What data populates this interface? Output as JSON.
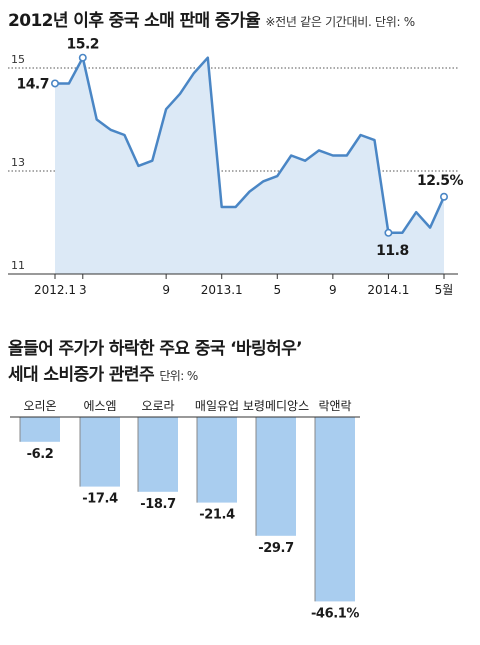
{
  "line_chart": {
    "title": "2012년 이후 중국 소매 판매 증가율",
    "note": "※전년 같은 기간대비. 단위: %"
  },
  "bar_chart": {
    "title_line1": "올들어 주가가 하락한 주요 중국 ‘바링허우’",
    "title_line2": "세대 소비증가 관련주",
    "note": "단위: %"
  },
  "colors": {
    "line": "#4a86c5",
    "area": "#dce9f6",
    "bar": "#a9cdef",
    "text": "#1a1a1a"
  },
  "chart_data": [
    {
      "type": "line",
      "title": "2012년 이후 중국 소매 판매 증가율",
      "unit_note": "※전년 같은 기간대비. 단위: %",
      "y_ticks": [
        "15",
        "13",
        "11"
      ],
      "ylim": [
        11,
        15.6
      ],
      "x_tick_labels": [
        {
          "index": 0,
          "label": "2012.1"
        },
        {
          "index": 2,
          "label": "3"
        },
        {
          "index": 8,
          "label": "9"
        },
        {
          "index": 12,
          "label": "2013.1"
        },
        {
          "index": 16,
          "label": "5"
        },
        {
          "index": 20,
          "label": "9"
        },
        {
          "index": 24,
          "label": "2014.1"
        },
        {
          "index": 28,
          "label": "5월"
        }
      ],
      "values": [
        14.7,
        14.7,
        15.2,
        14.0,
        13.8,
        13.7,
        13.1,
        13.2,
        14.2,
        14.5,
        14.9,
        15.2,
        12.3,
        12.3,
        12.6,
        12.8,
        12.9,
        13.3,
        13.2,
        13.4,
        13.3,
        13.3,
        13.7,
        13.6,
        11.8,
        11.8,
        12.2,
        11.9,
        12.5
      ],
      "annotations": [
        {
          "index": 0,
          "label": "14.7"
        },
        {
          "index": 2,
          "label": "15.2"
        },
        {
          "index": 24,
          "label": "11.8"
        },
        {
          "index": 28,
          "label": "12.5%"
        }
      ],
      "grid": true
    },
    {
      "type": "bar",
      "title": "올들어 주가가 하락한 주요 중국 ‘바링허우’ 세대 소비증가 관련주",
      "unit_note": "단위: %",
      "categories": [
        "오리온",
        "에스엠",
        "오로라",
        "매일유업",
        "보령메디앙스",
        "락앤락"
      ],
      "values": [
        -6.2,
        -17.4,
        -18.7,
        -21.4,
        -29.7,
        -46.1
      ],
      "value_labels": [
        "-6.2",
        "-17.4",
        "-18.7",
        "-21.4",
        "-29.7",
        "-46.1%"
      ]
    }
  ]
}
